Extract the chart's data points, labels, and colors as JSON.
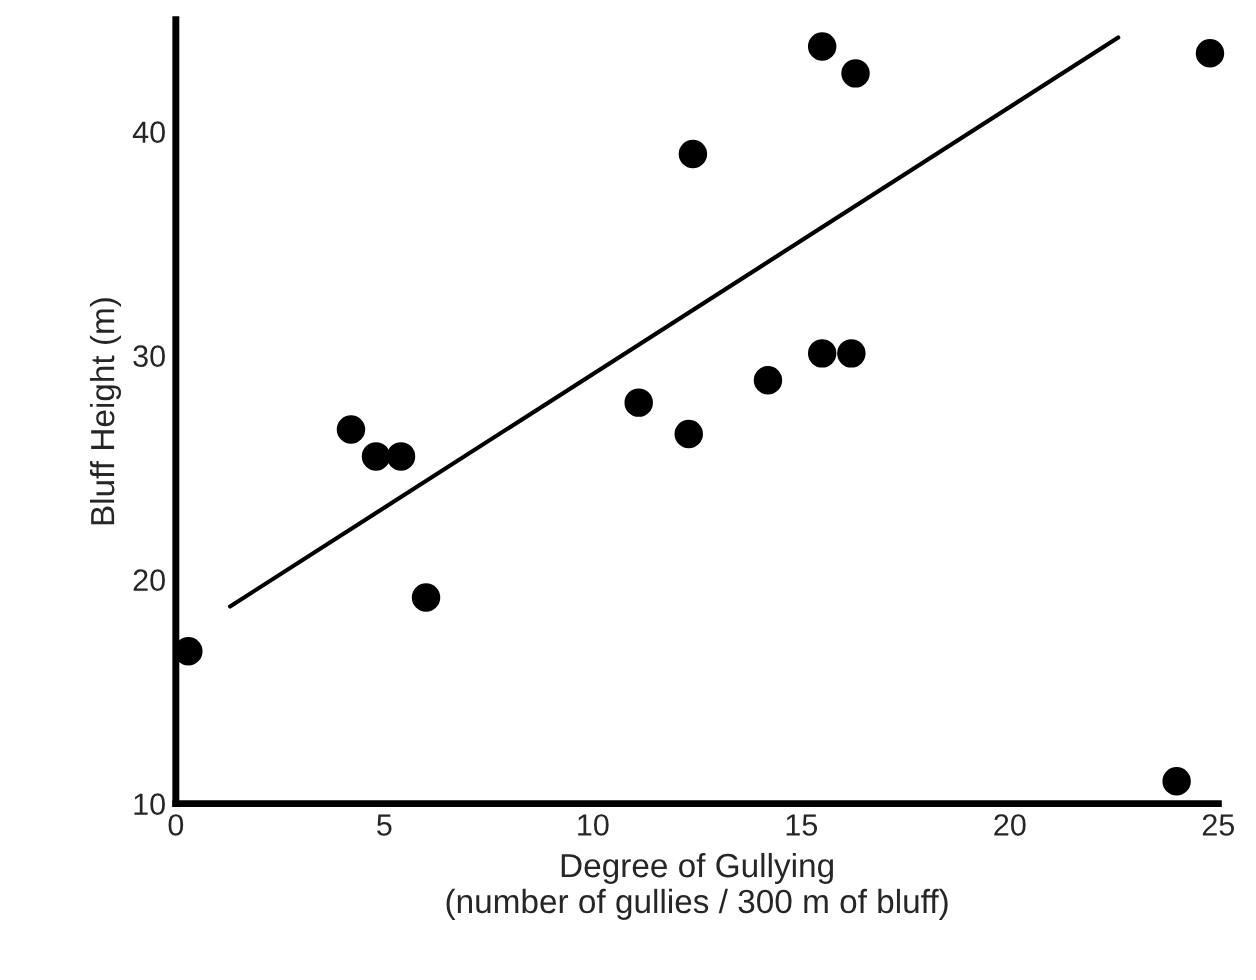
{
  "chart_data": {
    "type": "scatter",
    "xlabel": "Degree of Gullying\n(number of gullies / 300 m of bluff)",
    "ylabel": "Bluff Height (m)",
    "xlim": [
      0,
      25
    ],
    "ylim": [
      10,
      45
    ],
    "xticks": [
      0,
      5,
      10,
      15,
      20,
      25
    ],
    "yticks": [
      10,
      20,
      30,
      40
    ],
    "grid": false,
    "legend": false,
    "marker": "circle",
    "series": [
      {
        "color": "#000000",
        "x": [
          0.3,
          4.2,
          4.8,
          5.4,
          6.0,
          11.1,
          12.3,
          12.4,
          15.5,
          16.3,
          14.2,
          15.5,
          16.2,
          24.8,
          24.0
        ],
        "values": [
          16.8,
          26.7,
          25.5,
          25.5,
          19.2,
          27.9,
          26.5,
          39.0,
          43.8,
          42.6,
          28.9,
          30.1,
          30.1,
          43.5,
          11.0
        ]
      },
      {
        "type": "line",
        "color": "#000000",
        "x": [
          1.3,
          22.6
        ],
        "values": [
          18.8,
          44.2
        ],
        "marker": "none",
        "line_style": "solid"
      }
    ]
  }
}
